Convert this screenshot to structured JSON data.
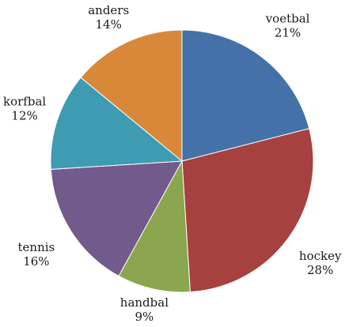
{
  "chart_data": {
    "type": "pie",
    "title": "",
    "slices": [
      {
        "name": "voetbal",
        "value": 21,
        "value_label": "21%",
        "color": "#4472A8"
      },
      {
        "name": "hockey",
        "value": 28,
        "value_label": "28%",
        "color": "#A7413F"
      },
      {
        "name": "handbal",
        "value": 9,
        "value_label": "9%",
        "color": "#8AA64E"
      },
      {
        "name": "tennis",
        "value": 16,
        "value_label": "16%",
        "color": "#735A8C"
      },
      {
        "name": "korfbal",
        "value": 12,
        "value_label": "12%",
        "color": "#3E9BB2"
      },
      {
        "name": "anders",
        "value": 14,
        "value_label": "14%",
        "color": "#D9883A"
      }
    ],
    "start_angle": "12 o'clock",
    "direction": "clockwise",
    "legend": "none"
  }
}
